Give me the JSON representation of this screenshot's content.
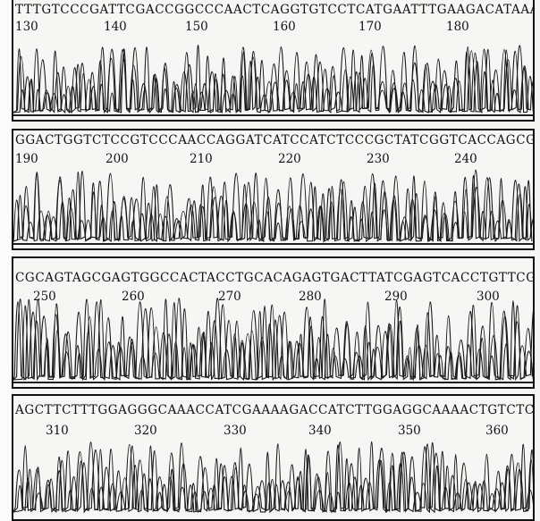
{
  "panels": [
    {
      "sequence": "TTTGTCCCGATTCGACCGGCCCAACTCAGGTGTCCTCATGAATTTGAAGACATAAACAAG",
      "positions": [
        "130",
        "140",
        "150",
        "160",
        "170",
        "180"
      ]
    },
    {
      "sequence": "GGACTGGTCTCCGTCCCAACCAGGATCATCCATCTCCCGCTATCGGTCACCAGCGTCTC",
      "positions": [
        "190",
        "200",
        "210",
        "220",
        "230",
        "240"
      ]
    },
    {
      "sequence": "CGCAGTAGCGAGTGGCCACTACCTGCACAGAGTGACTTATCGAGTCACCTGTTCGACC",
      "positions": [
        "250",
        "260",
        "270",
        "280",
        "290",
        "300"
      ]
    },
    {
      "sequence": "AGCTTCTTTGGAGGGCAAACCATCGAAAAGACCATCTTGGAGGCAAAACTGTCTCGTCA",
      "positions": [
        "310",
        "320",
        "330",
        "340",
        "350",
        "360"
      ]
    }
  ]
}
